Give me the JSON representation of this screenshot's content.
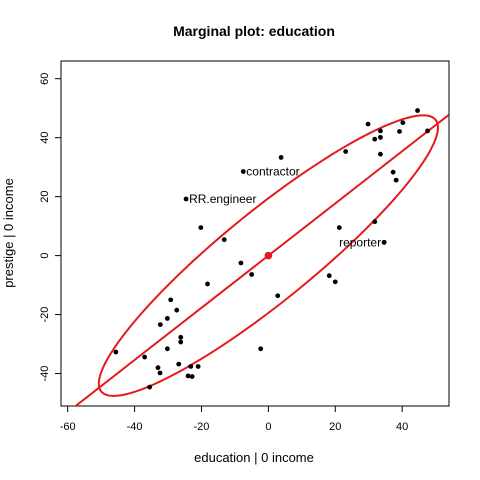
{
  "chart_data": {
    "type": "scatter",
    "title": "Marginal plot: education",
    "xlabel": "education |  0 income",
    "ylabel": "prestige |  0 income",
    "xlim": [
      -62,
      54
    ],
    "ylim": [
      -51,
      66
    ],
    "xticks": [
      -60,
      -40,
      -20,
      0,
      20,
      40
    ],
    "yticks": [
      -40,
      -20,
      0,
      20,
      40,
      60
    ],
    "grid": false,
    "legend": "none",
    "colors": {
      "points": "#000000",
      "fit_line": "#e41a1c",
      "ellipse": "#e41a1c",
      "center": "#e41a1c"
    },
    "points": [
      {
        "x": 44.6,
        "y": 49.2
      },
      {
        "x": 40.2,
        "y": 45.1
      },
      {
        "x": 29.8,
        "y": 44.6
      },
      {
        "x": 47.6,
        "y": 42.3
      },
      {
        "x": 33.5,
        "y": 42.3
      },
      {
        "x": 39.2,
        "y": 42.1
      },
      {
        "x": 33.5,
        "y": 40.1
      },
      {
        "x": 31.8,
        "y": 39.5
      },
      {
        "x": 23.1,
        "y": 35.3
      },
      {
        "x": 33.5,
        "y": 34.4
      },
      {
        "x": 3.8,
        "y": 33.3
      },
      {
        "x": 37.3,
        "y": 28.3
      },
      {
        "x": 38.2,
        "y": 25.6
      },
      {
        "x": 21.2,
        "y": 9.5
      },
      {
        "x": 31.8,
        "y": 11.5
      },
      {
        "x": 34.6,
        "y": 4.5
      },
      {
        "x": -20.2,
        "y": 9.5
      },
      {
        "x": -13.2,
        "y": 5.4
      },
      {
        "x": -5.0,
        "y": -6.4
      },
      {
        "x": -8.2,
        "y": -2.5
      },
      {
        "x": 18.2,
        "y": -6.8
      },
      {
        "x": 20.0,
        "y": -8.9
      },
      {
        "x": 2.8,
        "y": -13.6
      },
      {
        "x": -18.2,
        "y": -9.6
      },
      {
        "x": -29.2,
        "y": -15.0
      },
      {
        "x": -27.4,
        "y": -18.5
      },
      {
        "x": -30.2,
        "y": -21.3
      },
      {
        "x": -32.3,
        "y": -23.4
      },
      {
        "x": -26.2,
        "y": -27.7
      },
      {
        "x": -26.2,
        "y": -29.3
      },
      {
        "x": -30.2,
        "y": -31.6
      },
      {
        "x": -2.3,
        "y": -31.6
      },
      {
        "x": -37.0,
        "y": -34.4
      },
      {
        "x": -45.6,
        "y": -32.7
      },
      {
        "x": -21.0,
        "y": -37.6
      },
      {
        "x": -26.8,
        "y": -36.8
      },
      {
        "x": -33.0,
        "y": -38.0
      },
      {
        "x": -23.2,
        "y": -37.6
      },
      {
        "x": -32.4,
        "y": -39.8
      },
      {
        "x": -24.0,
        "y": -40.8
      },
      {
        "x": -22.8,
        "y": -41.0
      },
      {
        "x": -35.5,
        "y": -44.6
      }
    ],
    "labeled_points": [
      {
        "name": "contractor",
        "x": -7.5,
        "y": 28.5
      },
      {
        "name": "RR.engineer",
        "x": -24.6,
        "y": 19.2
      },
      {
        "name": "reporter",
        "x": 34.6,
        "y": 4.5
      }
    ],
    "center_point": {
      "x": 0,
      "y": 0
    },
    "fit_line": {
      "slope": 0.885,
      "intercept": 0
    },
    "data_ellipse": {
      "center": [
        0,
        0
      ],
      "semi_major": 68.0,
      "semi_minor": 14.5,
      "angle_deg": 43.0
    }
  }
}
